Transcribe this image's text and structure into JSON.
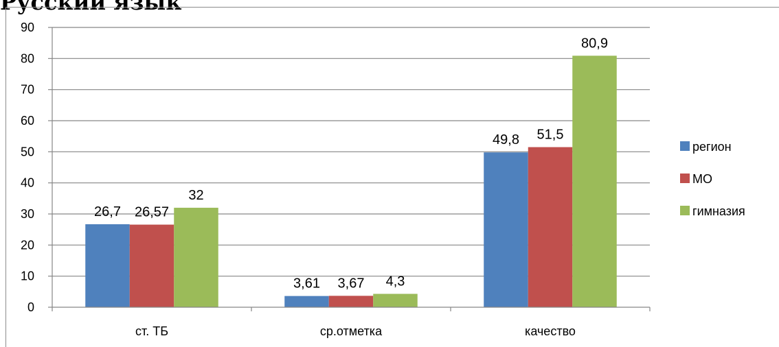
{
  "page": {
    "title": "Русский язык"
  },
  "chart_data": {
    "type": "bar",
    "categories": [
      "ст. ТБ",
      "ср.отметка",
      "качество"
    ],
    "series": [
      {
        "name": "регион",
        "values": [
          26.7,
          3.61,
          49.8
        ],
        "labels": [
          "26,7",
          "3,61",
          "49,8"
        ],
        "color": "#4f81bd"
      },
      {
        "name": "МО",
        "values": [
          26.57,
          3.67,
          51.5
        ],
        "labels": [
          "26,57",
          "3,67",
          "51,5"
        ],
        "color": "#c0504d"
      },
      {
        "name": "гимназия",
        "values": [
          32,
          4.3,
          80.9
        ],
        "labels": [
          "32",
          "4,3",
          "80,9"
        ],
        "color": "#9bbb59"
      }
    ],
    "yticks": [
      0,
      10,
      20,
      30,
      40,
      50,
      60,
      70,
      80,
      90
    ],
    "ylim": [
      0,
      90
    ],
    "grid": true,
    "legend": "right"
  }
}
